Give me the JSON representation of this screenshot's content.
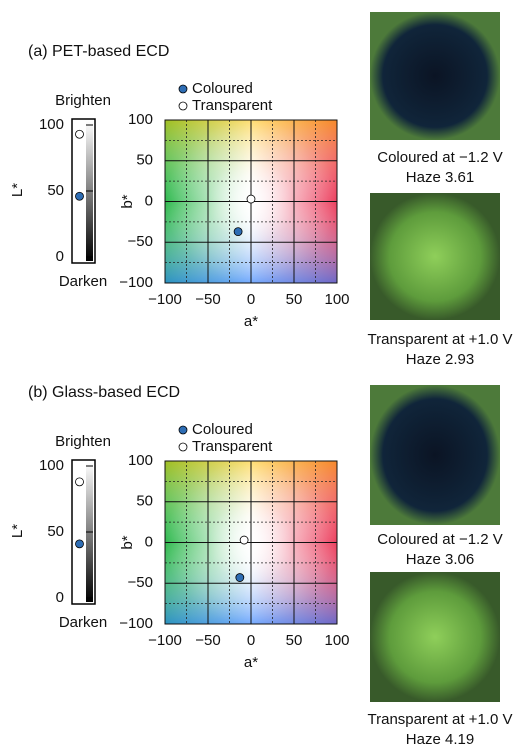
{
  "chart_data": [
    {
      "type": "strip",
      "ylabel": "L*",
      "top_label": "Brighten",
      "bottom_label": "Darken",
      "ylim": [
        0,
        100
      ],
      "yticks": [
        0,
        50,
        100
      ],
      "series": [
        {
          "color": "#2e6db4",
          "values": [
            46
          ]
        },
        {
          "color": "#ffffff",
          "values": [
            93
          ]
        }
      ]
    },
    {
      "type": "scatter",
      "title": "(a) PET-based ECD",
      "xlabel": "a*",
      "ylabel": "b*",
      "xlim": [
        -100,
        100
      ],
      "ylim": [
        -100,
        100
      ],
      "xticks": [
        {
          "value": -100,
          "label": "−100"
        },
        {
          "value": -50,
          "label": "−50"
        },
        0,
        50,
        100
      ],
      "yticks": [
        {
          "value": -100,
          "label": "−100"
        },
        {
          "value": -50,
          "label": "−50"
        },
        0,
        50,
        100
      ],
      "grid": true,
      "minor_grid": [
        -75,
        -25,
        25,
        75
      ],
      "legend": "top-left",
      "series": [
        {
          "name": "Coloured",
          "color": "#2e6db4",
          "x": [
            -15
          ],
          "values": [
            -37
          ]
        },
        {
          "name": "Transparent",
          "color": "#ffffff",
          "x": [
            0
          ],
          "values": [
            3
          ]
        }
      ]
    },
    {
      "type": "strip",
      "ylabel": "L*",
      "top_label": "Brighten",
      "bottom_label": "Darken",
      "ylim": [
        0,
        100
      ],
      "yticks": [
        0,
        50,
        100
      ],
      "series": [
        {
          "color": "#2e6db4",
          "values": [
            41
          ]
        },
        {
          "color": "#ffffff",
          "values": [
            88
          ]
        }
      ]
    },
    {
      "type": "scatter",
      "title": "(b) Glass-based ECD",
      "xlabel": "a*",
      "ylabel": "b*",
      "xlim": [
        -100,
        100
      ],
      "ylim": [
        -100,
        100
      ],
      "xticks": [
        {
          "value": -100,
          "label": "−100"
        },
        {
          "value": -50,
          "label": "−50"
        },
        0,
        50,
        100
      ],
      "yticks": [
        {
          "value": -100,
          "label": "−100"
        },
        {
          "value": -50,
          "label": "−50"
        },
        0,
        50,
        100
      ],
      "grid": true,
      "minor_grid": [
        -75,
        -25,
        25,
        75
      ],
      "legend": "top-left",
      "series": [
        {
          "name": "Coloured",
          "color": "#2e6db4",
          "x": [
            -13
          ],
          "values": [
            -43
          ]
        },
        {
          "name": "Transparent",
          "color": "#ffffff",
          "x": [
            -8
          ],
          "values": [
            3
          ]
        }
      ]
    }
  ],
  "photos": [
    {
      "caption": [
        "Coloured at −1.2 V",
        "Haze 3.61"
      ]
    },
    {
      "caption": [
        "Transparent at +1.0 V",
        "Haze 2.93"
      ]
    },
    {
      "caption": [
        "Coloured at −1.2 V",
        "Haze 3.06"
      ]
    },
    {
      "caption": [
        "Transparent at +1.0 V",
        "Haze 4.19"
      ]
    }
  ]
}
